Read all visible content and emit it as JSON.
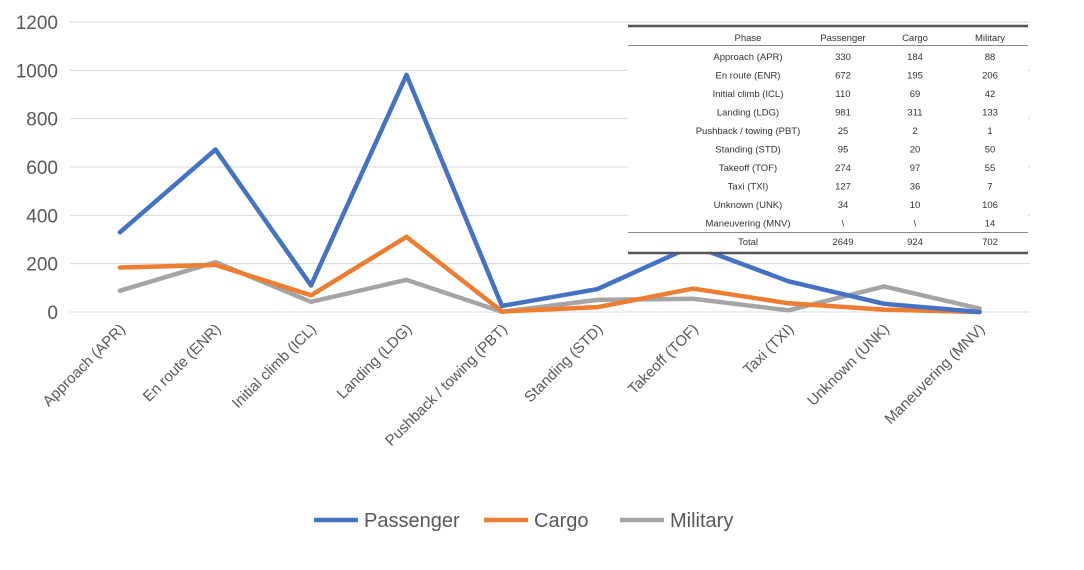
{
  "chart_data": {
    "type": "line",
    "title": "",
    "xlabel": "",
    "ylabel": "",
    "ylim": [
      0,
      1200
    ],
    "yticks": [
      0,
      200,
      400,
      600,
      800,
      1000,
      1200
    ],
    "grid": true,
    "legend_position": "bottom",
    "categories": [
      "Approach (APR)",
      "En route (ENR)",
      "Initial climb (ICL)",
      "Landing (LDG)",
      "Pushback / towing (PBT)",
      "Standing (STD)",
      "Takeoff (TOF)",
      "Taxi (TXI)",
      "Unknown (UNK)",
      "Maneuvering (MNV)"
    ],
    "series": [
      {
        "name": "Passenger",
        "color": "#4472c4",
        "values": [
          330,
          672,
          110,
          981,
          25,
          95,
          274,
          127,
          34,
          0
        ]
      },
      {
        "name": "Cargo",
        "color": "#ed7d31",
        "values": [
          184,
          195,
          69,
          311,
          2,
          20,
          97,
          36,
          10,
          0
        ]
      },
      {
        "name": "Military",
        "color": "#a5a5a5",
        "values": [
          88,
          206,
          42,
          133,
          1,
          50,
          55,
          7,
          106,
          14
        ]
      }
    ],
    "table": {
      "headers": [
        "Phase",
        "Passenger",
        "Cargo",
        "Military"
      ],
      "rows": [
        [
          "Approach (APR)",
          "330",
          "184",
          "88"
        ],
        [
          "En route (ENR)",
          "672",
          "195",
          "206"
        ],
        [
          "Initial climb (ICL)",
          "110",
          "69",
          "42"
        ],
        [
          "Landing (LDG)",
          "981",
          "311",
          "133"
        ],
        [
          "Pushback / towing (PBT)",
          "25",
          "2",
          "1"
        ],
        [
          "Standing (STD)",
          "95",
          "20",
          "50"
        ],
        [
          "Takeoff (TOF)",
          "274",
          "97",
          "55"
        ],
        [
          "Taxi (TXI)",
          "127",
          "36",
          "7"
        ],
        [
          "Unknown (UNK)",
          "34",
          "10",
          "106"
        ],
        [
          "Maneuvering (MNV)",
          "\\",
          "\\",
          "14"
        ],
        [
          "Total",
          "2649",
          "924",
          "702"
        ]
      ]
    }
  }
}
